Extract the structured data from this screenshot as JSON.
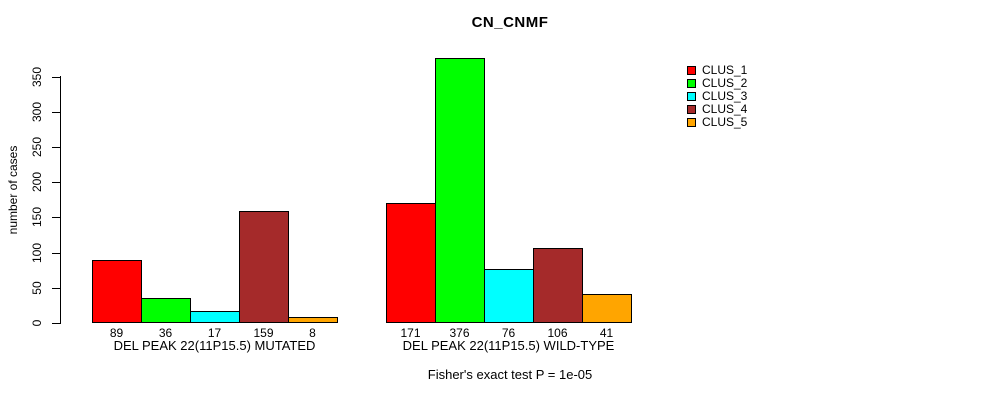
{
  "title": "CN_CNMF",
  "footer": "Fisher's exact test P = 1e-05",
  "chart_data": {
    "type": "bar",
    "title": "CN_CNMF",
    "xlabel": "",
    "ylabel": "number of cases",
    "ylim": [
      0,
      380
    ],
    "yticks": [
      0,
      50,
      100,
      150,
      200,
      250,
      300,
      350
    ],
    "grid": false,
    "legend_position": "right",
    "bar_value_labels": true,
    "categories": [
      "DEL PEAK 22(11P15.5) MUTATED",
      "DEL PEAK 22(11P15.5) WILD-TYPE"
    ],
    "series": [
      {
        "name": "CLUS_1",
        "color": "#ff0000",
        "values": [
          89,
          171
        ]
      },
      {
        "name": "CLUS_2",
        "color": "#00ff00",
        "values": [
          36,
          376
        ]
      },
      {
        "name": "CLUS_3",
        "color": "#00ffff",
        "values": [
          17,
          76
        ]
      },
      {
        "name": "CLUS_4",
        "color": "#a52a2a",
        "values": [
          159,
          106
        ]
      },
      {
        "name": "CLUS_5",
        "color": "#ffa500",
        "values": [
          8,
          41
        ]
      }
    ],
    "annotation": "Fisher's exact test P = 1e-05",
    "axis_color": "#000000",
    "background_color": "#ffffff"
  }
}
